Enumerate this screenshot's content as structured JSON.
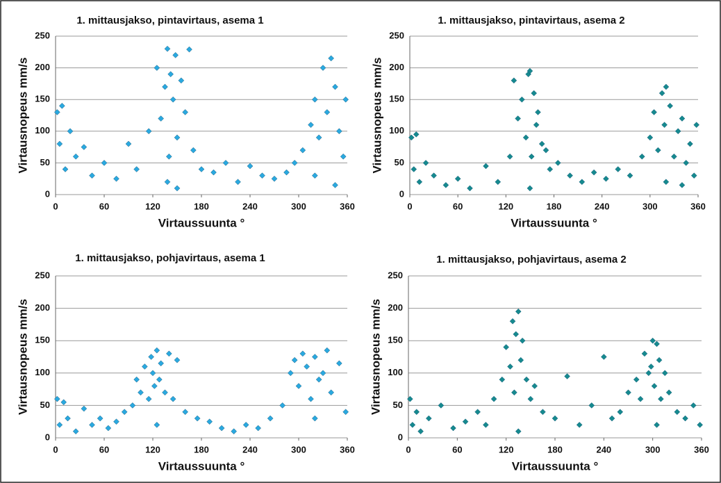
{
  "chart_data": [
    {
      "type": "scatter",
      "title": "1. mittausjakso, pintavirtaus, asema 1",
      "x_label": "Virtaussuunta °",
      "y_label": "Virtausnopeus mm/s",
      "x": [
        2,
        5,
        8,
        12,
        18,
        25,
        35,
        45,
        60,
        75,
        90,
        100,
        115,
        125,
        130,
        135,
        138,
        140,
        142,
        145,
        148,
        150,
        155,
        160,
        165,
        170,
        180,
        195,
        210,
        225,
        240,
        255,
        270,
        285,
        295,
        305,
        315,
        320,
        325,
        330,
        335,
        340,
        345,
        350,
        355,
        358,
        138,
        150,
        320,
        345
      ],
      "y": [
        130,
        80,
        140,
        40,
        100,
        60,
        75,
        30,
        50,
        25,
        80,
        40,
        100,
        200,
        120,
        170,
        230,
        60,
        190,
        150,
        220,
        90,
        180,
        130,
        229,
        70,
        40,
        35,
        50,
        20,
        45,
        30,
        25,
        35,
        50,
        70,
        110,
        150,
        90,
        200,
        130,
        215,
        170,
        100,
        60,
        150,
        20,
        10,
        30,
        15
      ],
      "color": "#2aa9e0",
      "xlim": [
        0,
        360
      ],
      "ylim": [
        0,
        250
      ],
      "xticks": [
        0,
        60,
        120,
        180,
        240,
        300,
        360
      ],
      "yticks": [
        0,
        50,
        100,
        150,
        200,
        250
      ],
      "grid": true
    },
    {
      "type": "scatter",
      "title": "1. mittausjakso, pintavirtaus, asema 2",
      "x_label": "Virtaussuunta °",
      "y_label": "Virtausnopeus mm/s",
      "x": [
        2,
        5,
        8,
        12,
        20,
        30,
        45,
        60,
        75,
        95,
        110,
        125,
        130,
        135,
        140,
        145,
        148,
        150,
        152,
        155,
        158,
        160,
        165,
        170,
        175,
        185,
        200,
        215,
        230,
        245,
        260,
        275,
        290,
        300,
        305,
        310,
        315,
        318,
        320,
        325,
        330,
        335,
        340,
        345,
        350,
        355,
        358,
        150,
        320,
        340
      ],
      "y": [
        90,
        40,
        95,
        20,
        50,
        30,
        15,
        25,
        10,
        45,
        20,
        60,
        180,
        120,
        150,
        90,
        190,
        195,
        60,
        160,
        110,
        130,
        80,
        70,
        40,
        50,
        30,
        20,
        35,
        25,
        40,
        30,
        60,
        90,
        130,
        70,
        160,
        110,
        170,
        140,
        60,
        100,
        120,
        50,
        80,
        30,
        110,
        10,
        20,
        15
      ],
      "color": "#168a8f",
      "xlim": [
        0,
        360
      ],
      "ylim": [
        0,
        250
      ],
      "xticks": [
        0,
        60,
        120,
        180,
        240,
        300,
        360
      ],
      "yticks": [
        0,
        50,
        100,
        150,
        200,
        250
      ],
      "grid": true
    },
    {
      "type": "scatter",
      "title": "1. mittausjakso, pohjavirtaus, asema 1",
      "x_label": "Virtaussuunta °",
      "y_label": "Virtausnopeus mm/s",
      "x": [
        2,
        5,
        10,
        15,
        25,
        35,
        45,
        55,
        65,
        75,
        85,
        95,
        100,
        105,
        110,
        115,
        118,
        120,
        122,
        125,
        128,
        130,
        135,
        140,
        145,
        150,
        160,
        175,
        190,
        205,
        220,
        235,
        250,
        265,
        280,
        290,
        295,
        300,
        305,
        310,
        315,
        320,
        325,
        330,
        335,
        340,
        350,
        358,
        125,
        320
      ],
      "y": [
        60,
        20,
        55,
        30,
        10,
        45,
        20,
        30,
        15,
        25,
        40,
        50,
        90,
        70,
        110,
        60,
        125,
        100,
        80,
        135,
        90,
        115,
        70,
        130,
        60,
        120,
        40,
        30,
        25,
        15,
        10,
        20,
        15,
        30,
        50,
        100,
        120,
        80,
        130,
        110,
        60,
        125,
        90,
        100,
        135,
        70,
        115,
        40,
        20,
        30
      ],
      "color": "#2aa9e0",
      "xlim": [
        0,
        360
      ],
      "ylim": [
        0,
        250
      ],
      "xticks": [
        0,
        60,
        120,
        180,
        240,
        300,
        360
      ],
      "yticks": [
        0,
        50,
        100,
        150,
        200,
        250
      ],
      "grid": true
    },
    {
      "type": "scatter",
      "title": "1. mittausjakso, pohjavirtaus, asema 2",
      "x_label": "Virtaussuunta °",
      "y_label": "Virtausnopeus mm/s",
      "x": [
        2,
        5,
        10,
        15,
        25,
        40,
        55,
        70,
        85,
        95,
        105,
        115,
        120,
        125,
        128,
        130,
        132,
        135,
        138,
        140,
        145,
        150,
        155,
        165,
        180,
        195,
        210,
        225,
        240,
        250,
        260,
        270,
        280,
        285,
        290,
        295,
        298,
        300,
        302,
        305,
        308,
        310,
        315,
        320,
        330,
        340,
        350,
        358,
        135,
        305
      ],
      "y": [
        60,
        20,
        40,
        10,
        30,
        50,
        15,
        25,
        40,
        20,
        60,
        90,
        140,
        110,
        180,
        70,
        160,
        195,
        120,
        150,
        90,
        60,
        80,
        40,
        30,
        95,
        20,
        50,
        125,
        30,
        40,
        70,
        90,
        60,
        130,
        100,
        110,
        150,
        80,
        145,
        120,
        60,
        100,
        70,
        40,
        30,
        50,
        20,
        10,
        20
      ],
      "color": "#168a8f",
      "xlim": [
        0,
        360
      ],
      "ylim": [
        0,
        250
      ],
      "xticks": [
        0,
        60,
        120,
        180,
        240,
        300,
        360
      ],
      "yticks": [
        0,
        50,
        100,
        150,
        200,
        250
      ],
      "grid": true
    }
  ]
}
